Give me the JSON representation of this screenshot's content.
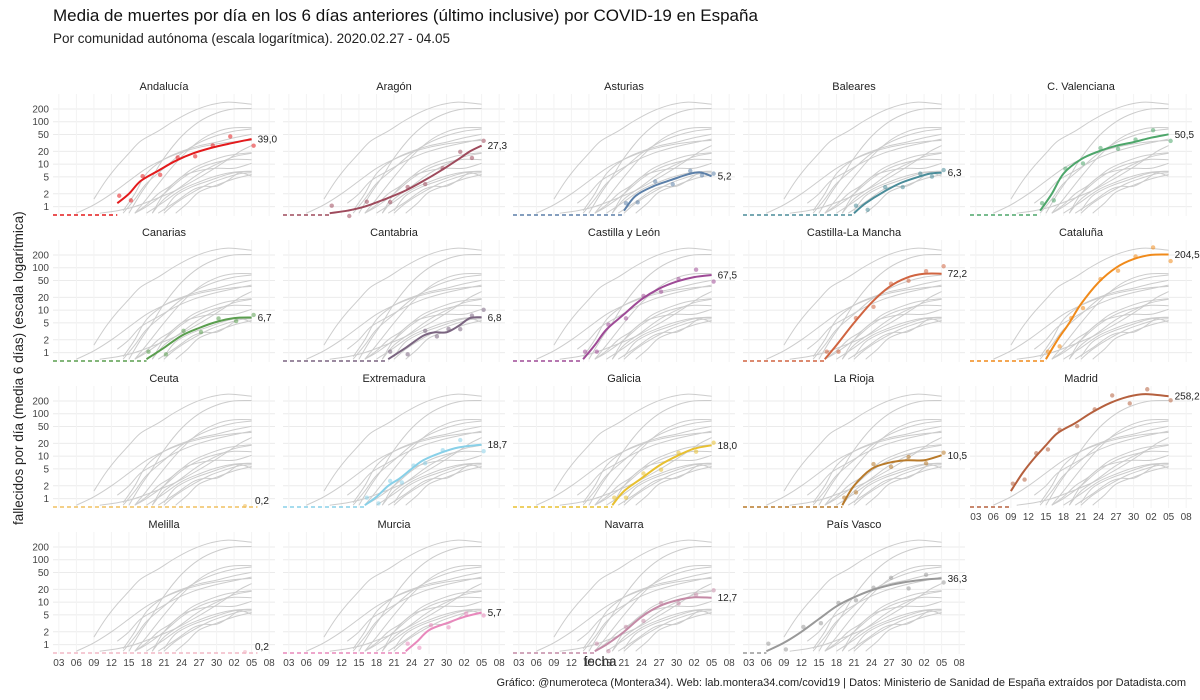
{
  "title": "Media de muertes por día en los 6 días anteriores (último inclusive) por COVID-19 en España",
  "subtitle": "Por comunidad autónoma (escala logarítmica). 2020.02.27 - 04.05",
  "ylabel": "fallecidos por día (media 6 días) (escala logarítmica)",
  "xlabel": "fecha",
  "caption": "Gráfico: @numeroteca (Montera34). Web: lab.montera34.com/covid19 | Datos: Ministerio de Sanidad de España extraídos por Datadista.com",
  "colors": {
    "background_lines": "#cccccc",
    "grid": "#ebebeb",
    "Andalucía": "#e31a1c",
    "Aragón": "#9e4a5c",
    "Asturias": "#5b7fa8",
    "Baleares": "#4a8c99",
    "C. Valenciana": "#4da66a",
    "Canarias": "#5a9e4e",
    "Cantabria": "#7a6480",
    "Castilla y León": "#9e4a96",
    "Castilla-La Mancha": "#d06440",
    "Cataluña": "#f08a1a",
    "Ceuta": "#f0c060",
    "Extremadura": "#88d0e8",
    "Galicia": "#e8c030",
    "La Rioja": "#b87a2a",
    "Madrid": "#b5603e",
    "Melilla": "#f2b8c6",
    "Murcia": "#e888bc",
    "Navarra": "#c48aa6",
    "País Vasco": "#999999"
  },
  "chart_data": {
    "type": "line",
    "scale": "log",
    "x_unit": "date (2020)",
    "xlim": [
      "2020-03-02",
      "2020-04-09"
    ],
    "x_ticks": [
      "2020-03-03",
      "2020-03-06",
      "2020-03-09",
      "2020-03-12",
      "2020-03-15",
      "2020-03-18",
      "2020-03-21",
      "2020-03-24",
      "2020-03-27",
      "2020-03-30",
      "2020-04-02",
      "2020-04-05",
      "2020-04-08"
    ],
    "x_tick_labels": [
      "03",
      "06",
      "09",
      "12",
      "15",
      "18",
      "21",
      "24",
      "27",
      "30",
      "02",
      "05",
      "08"
    ],
    "y_ticks": [
      1,
      2,
      5,
      10,
      20,
      50,
      100,
      200
    ],
    "y_tick_labels": [
      "1",
      "2",
      "5",
      "10",
      "20",
      "50",
      "100",
      "200"
    ],
    "ylim": [
      0.6,
      450
    ],
    "grid": true,
    "facets": [
      {
        "name": "Andalucía",
        "last_label": "39,0",
        "series": [
          [
            "2020-03-13",
            1.2
          ],
          [
            "2020-03-15",
            2
          ],
          [
            "2020-03-17",
            4
          ],
          [
            "2020-03-20",
            7
          ],
          [
            "2020-03-23",
            12
          ],
          [
            "2020-03-26",
            18
          ],
          [
            "2020-03-29",
            24
          ],
          [
            "2020-04-01",
            30
          ],
          [
            "2020-04-05",
            39
          ]
        ]
      },
      {
        "name": "Aragón",
        "last_label": "27,3",
        "series": [
          [
            "2020-03-10",
            0.7
          ],
          [
            "2020-03-13",
            0.8
          ],
          [
            "2020-03-16",
            1
          ],
          [
            "2020-03-20",
            1.6
          ],
          [
            "2020-03-23",
            2.4
          ],
          [
            "2020-03-26",
            4
          ],
          [
            "2020-03-29",
            7
          ],
          [
            "2020-04-01",
            13
          ],
          [
            "2020-04-03",
            20
          ],
          [
            "2020-04-05",
            27.3
          ]
        ]
      },
      {
        "name": "Asturias",
        "last_label": "5,2",
        "series": [
          [
            "2020-03-21",
            0.8
          ],
          [
            "2020-03-23",
            1.8
          ],
          [
            "2020-03-26",
            3
          ],
          [
            "2020-03-29",
            4.2
          ],
          [
            "2020-04-01",
            5.8
          ],
          [
            "2020-04-03",
            6.4
          ],
          [
            "2020-04-05",
            5.2
          ]
        ]
      },
      {
        "name": "Baleares",
        "last_label": "6,3",
        "series": [
          [
            "2020-03-21",
            0.7
          ],
          [
            "2020-03-23",
            1.2
          ],
          [
            "2020-03-26",
            2.2
          ],
          [
            "2020-03-29",
            3.6
          ],
          [
            "2020-04-01",
            5
          ],
          [
            "2020-04-03",
            6
          ],
          [
            "2020-04-05",
            6.3
          ]
        ]
      },
      {
        "name": "C. Valenciana",
        "last_label": "50,5",
        "series": [
          [
            "2020-03-14",
            0.8
          ],
          [
            "2020-03-16",
            2
          ],
          [
            "2020-03-18",
            6
          ],
          [
            "2020-03-21",
            13
          ],
          [
            "2020-03-24",
            20
          ],
          [
            "2020-03-27",
            27
          ],
          [
            "2020-03-30",
            33
          ],
          [
            "2020-04-02",
            42
          ],
          [
            "2020-04-05",
            50.5
          ]
        ]
      },
      {
        "name": "Canarias",
        "last_label": "6,7",
        "series": [
          [
            "2020-03-18",
            0.7
          ],
          [
            "2020-03-21",
            1.3
          ],
          [
            "2020-03-24",
            2.5
          ],
          [
            "2020-03-27",
            3.8
          ],
          [
            "2020-03-30",
            5.3
          ],
          [
            "2020-04-02",
            6.5
          ],
          [
            "2020-04-05",
            6.7
          ]
        ]
      },
      {
        "name": "Cantabria",
        "last_label": "6,8",
        "series": [
          [
            "2020-03-20",
            0.7
          ],
          [
            "2020-03-23",
            1.3
          ],
          [
            "2020-03-26",
            2.5
          ],
          [
            "2020-03-28",
            3
          ],
          [
            "2020-03-30",
            3
          ],
          [
            "2020-04-01",
            4.2
          ],
          [
            "2020-04-03",
            6.5
          ],
          [
            "2020-04-05",
            6.8
          ]
        ]
      },
      {
        "name": "Castilla y León",
        "last_label": "67,5",
        "series": [
          [
            "2020-03-14",
            0.7
          ],
          [
            "2020-03-16",
            1.5
          ],
          [
            "2020-03-18",
            3.5
          ],
          [
            "2020-03-21",
            8
          ],
          [
            "2020-03-24",
            18
          ],
          [
            "2020-03-27",
            32
          ],
          [
            "2020-03-30",
            47
          ],
          [
            "2020-04-02",
            60
          ],
          [
            "2020-04-05",
            67.5
          ]
        ]
      },
      {
        "name": "Castilla-La Mancha",
        "last_label": "72,2",
        "series": [
          [
            "2020-03-16",
            0.7
          ],
          [
            "2020-03-18",
            1.5
          ],
          [
            "2020-03-21",
            5
          ],
          [
            "2020-03-24",
            15
          ],
          [
            "2020-03-27",
            35
          ],
          [
            "2020-03-30",
            58
          ],
          [
            "2020-04-02",
            72
          ],
          [
            "2020-04-05",
            72.2
          ]
        ]
      },
      {
        "name": "Cataluña",
        "last_label": "204,5",
        "series": [
          [
            "2020-03-15",
            0.7
          ],
          [
            "2020-03-17",
            2
          ],
          [
            "2020-03-19",
            5
          ],
          [
            "2020-03-21",
            14
          ],
          [
            "2020-03-24",
            45
          ],
          [
            "2020-03-27",
            100
          ],
          [
            "2020-03-30",
            160
          ],
          [
            "2020-04-02",
            200
          ],
          [
            "2020-04-05",
            204.5
          ]
        ]
      },
      {
        "name": "Ceuta",
        "last_label": "0,2",
        "series": []
      },
      {
        "name": "Extremadura",
        "last_label": "18,7",
        "series": [
          [
            "2020-03-16",
            0.7
          ],
          [
            "2020-03-18",
            1.1
          ],
          [
            "2020-03-20",
            2
          ],
          [
            "2020-03-22",
            3
          ],
          [
            "2020-03-24",
            5
          ],
          [
            "2020-03-26",
            8
          ],
          [
            "2020-03-29",
            12
          ],
          [
            "2020-04-01",
            16
          ],
          [
            "2020-04-05",
            18.7
          ]
        ]
      },
      {
        "name": "Galicia",
        "last_label": "18,0",
        "series": [
          [
            "2020-03-19",
            0.7
          ],
          [
            "2020-03-21",
            1.5
          ],
          [
            "2020-03-24",
            3
          ],
          [
            "2020-03-27",
            6
          ],
          [
            "2020-03-30",
            10
          ],
          [
            "2020-04-02",
            15
          ],
          [
            "2020-04-05",
            18
          ]
        ]
      },
      {
        "name": "La Rioja",
        "last_label": "10,5",
        "series": [
          [
            "2020-03-19",
            0.7
          ],
          [
            "2020-03-21",
            2
          ],
          [
            "2020-03-24",
            5
          ],
          [
            "2020-03-27",
            7
          ],
          [
            "2020-03-30",
            8
          ],
          [
            "2020-04-02",
            8
          ],
          [
            "2020-04-05",
            10.5
          ]
        ]
      },
      {
        "name": "Madrid",
        "last_label": "258,2",
        "series": [
          [
            "2020-03-09",
            1.5
          ],
          [
            "2020-03-11",
            4
          ],
          [
            "2020-03-13",
            9
          ],
          [
            "2020-03-15",
            18
          ],
          [
            "2020-03-17",
            35
          ],
          [
            "2020-03-20",
            60
          ],
          [
            "2020-03-23",
            110
          ],
          [
            "2020-03-26",
            180
          ],
          [
            "2020-03-29",
            250
          ],
          [
            "2020-04-01",
            290
          ],
          [
            "2020-04-05",
            258.2
          ]
        ]
      },
      {
        "name": "Melilla",
        "last_label": "0,2",
        "series": []
      },
      {
        "name": "Murcia",
        "last_label": "5,7",
        "series": [
          [
            "2020-03-23",
            0.7
          ],
          [
            "2020-03-25",
            1.2
          ],
          [
            "2020-03-27",
            2.2
          ],
          [
            "2020-03-30",
            3.2
          ],
          [
            "2020-04-02",
            4.5
          ],
          [
            "2020-04-05",
            5.7
          ]
        ]
      },
      {
        "name": "Navarra",
        "last_label": "12,7",
        "series": [
          [
            "2020-03-16",
            0.7
          ],
          [
            "2020-03-18",
            1
          ],
          [
            "2020-03-21",
            2
          ],
          [
            "2020-03-24",
            4.5
          ],
          [
            "2020-03-27",
            8
          ],
          [
            "2020-03-30",
            11
          ],
          [
            "2020-04-02",
            13
          ],
          [
            "2020-04-05",
            12.7
          ]
        ]
      },
      {
        "name": "País Vasco",
        "last_label": "36,3",
        "series": [
          [
            "2020-03-06",
            0.7
          ],
          [
            "2020-03-09",
            1.1
          ],
          [
            "2020-03-12",
            2
          ],
          [
            "2020-03-15",
            4
          ],
          [
            "2020-03-18",
            8
          ],
          [
            "2020-03-21",
            13
          ],
          [
            "2020-03-24",
            19
          ],
          [
            "2020-03-27",
            25
          ],
          [
            "2020-03-30",
            30
          ],
          [
            "2020-04-02",
            34
          ],
          [
            "2020-04-05",
            36.3
          ]
        ]
      }
    ]
  }
}
